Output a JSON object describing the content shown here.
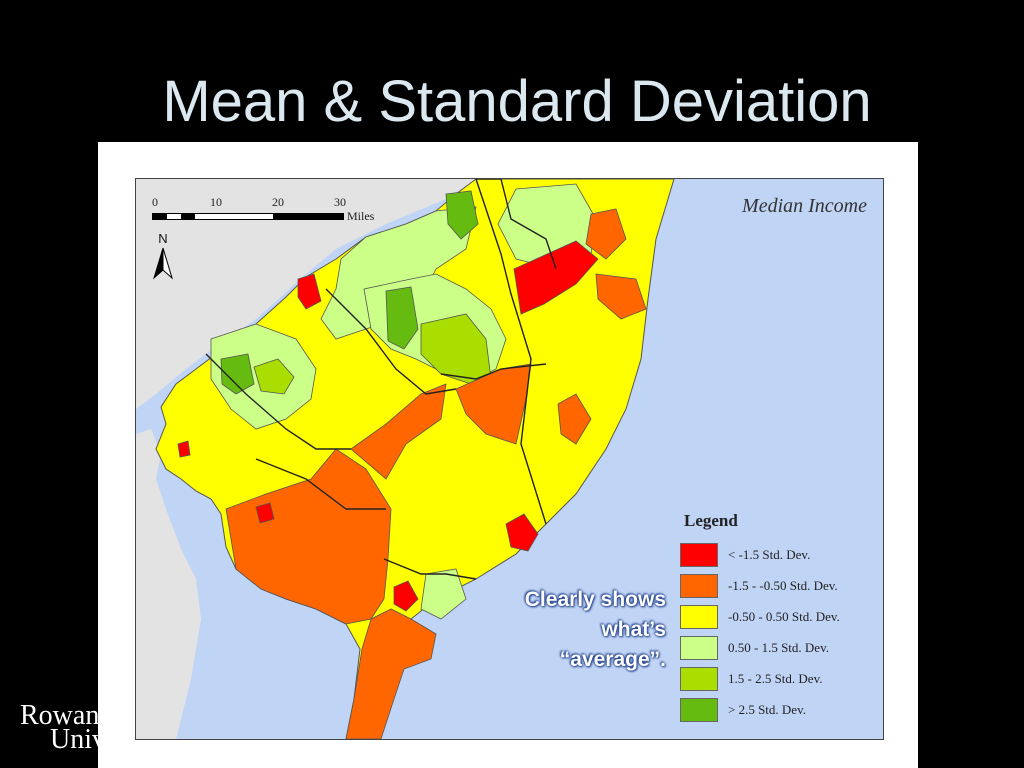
{
  "slide": {
    "title": "Mean & Standard Deviation",
    "annotation": [
      "Clearly shows",
      "what’s",
      "“average”."
    ],
    "logo": {
      "line1": "Rowan",
      "line2": "University"
    }
  },
  "map": {
    "title": "Median Income",
    "scale": {
      "ticks": [
        "0",
        "10",
        "20",
        "30"
      ],
      "unit": "Miles"
    },
    "north_label": "N",
    "colors": {
      "water": "#c0d4f5",
      "land_outside": "#e3e3e3",
      "border": "#555555"
    },
    "legend": {
      "title": "Legend",
      "items": [
        {
          "label": "< -1.5 Std. Dev.",
          "color": "#ff0000"
        },
        {
          "label": "-1.5 - -0.50 Std. Dev.",
          "color": "#ff6600"
        },
        {
          "label": "-0.50 - 0.50 Std. Dev.",
          "color": "#ffff00"
        },
        {
          "label": "0.50 - 1.5 Std. Dev.",
          "color": "#ccff88"
        },
        {
          "label": "1.5 - 2.5 Std. Dev.",
          "color": "#aadd00"
        },
        {
          "label": "> 2.5 Std. Dev.",
          "color": "#66bb11"
        }
      ]
    }
  }
}
